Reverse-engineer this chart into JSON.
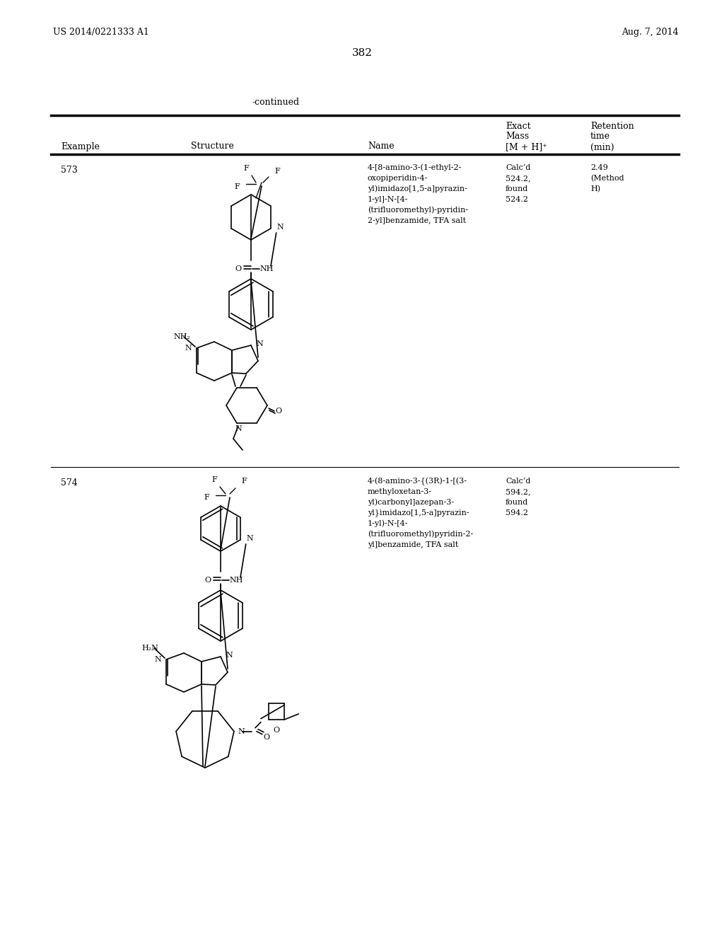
{
  "background_color": "#ffffff",
  "page_number": "382",
  "patent_number": "US 2014/0221333 A1",
  "patent_date": "Aug. 7, 2014",
  "continued_label": "-continued",
  "rows": [
    {
      "example": "573",
      "name_lines": [
        "4-[8-amino-3-(1-ethyl-2-",
        "oxopiperidin-4-",
        "yl)imidazo[1,5-a]pyrazin-",
        "1-yl]-N-[4-",
        "(trifluoromethyl)-pyridin-",
        "2-yl]benzamide, TFA salt"
      ],
      "exact_mass_lines": [
        "Calc’d",
        "524.2,",
        "found",
        "524.2"
      ],
      "retention_lines": [
        "2.49",
        "(Method",
        "H)"
      ]
    },
    {
      "example": "574",
      "name_lines": [
        "4-(8-amino-3-{(3R)-1-[(3-",
        "methyloxetan-3-",
        "yl)carbonyl]azepan-3-",
        "yl}imidazo[1,5-a]pyrazin-",
        "1-yl)-N-[4-",
        "(trifluoromethyl)pyridin-2-",
        "yl]benzamide, TFA salt"
      ],
      "exact_mass_lines": [
        "Calc’d",
        "594.2,",
        "found",
        "594.2"
      ],
      "retention_lines": []
    }
  ]
}
